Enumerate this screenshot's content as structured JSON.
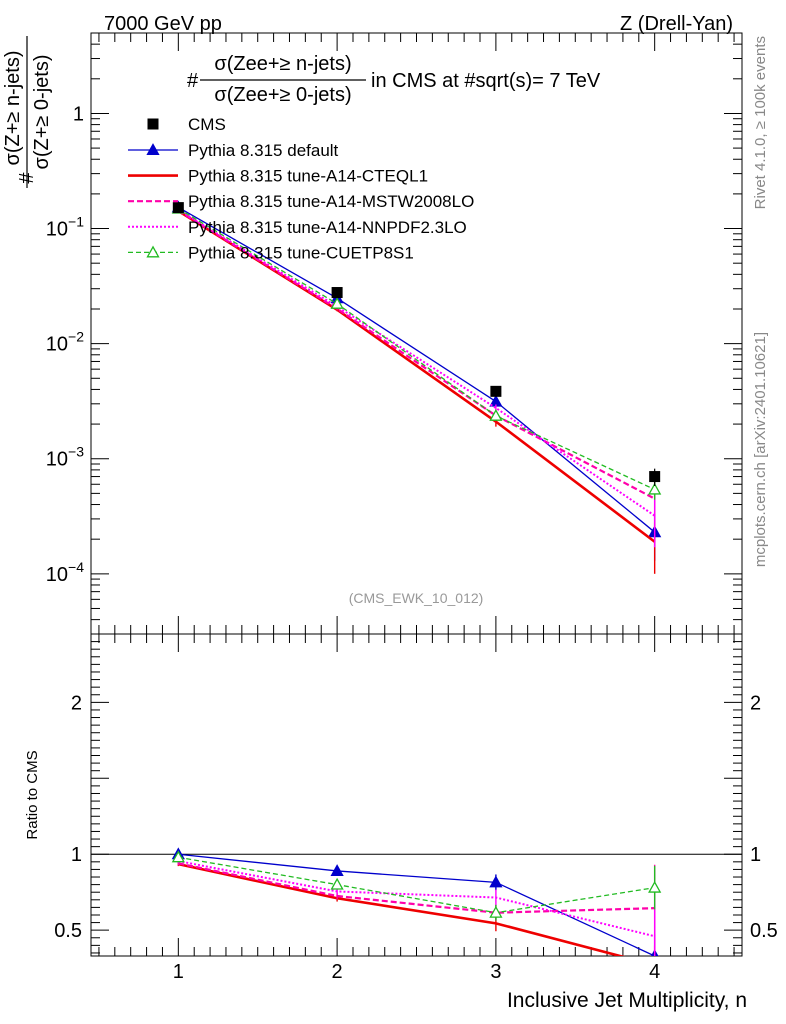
{
  "header": {
    "left": "7000 GeV pp",
    "right": "Z (Drell-Yan)"
  },
  "side_labels": {
    "rivet": "Rivet 4.1.0, ≥ 100k events",
    "mcplots": "mcplots.cern.ch [arXiv:2401.10621]"
  },
  "chart_data": {
    "type": "line",
    "title": {
      "prefix": "#",
      "numerator": "σ(Zee+≥ n-jets)",
      "denominator": "σ(Zee+≥ 0-jets)",
      "suffix": "in CMS at #sqrt(s)= 7 TeV"
    },
    "ylabel": {
      "prefix": "#",
      "numerator": "σ(Z+≥ n-jets)",
      "denominator": "σ(Z+≥ 0-jets)"
    },
    "xlabel": "Inclusive Jet Multiplicity, n",
    "ratio_ylabel": "Ratio to CMS",
    "watermark": "(CMS_EWK_10_012)",
    "x": [
      1,
      2,
      3,
      4
    ],
    "xlim": [
      0.45,
      4.55
    ],
    "ylim": [
      3e-05,
      5
    ],
    "yscale": "log",
    "ratio_ylim": [
      0.33,
      2.45
    ],
    "x_tick_labels": [
      "1",
      "2",
      "3",
      "4"
    ],
    "y_tick_labels": [
      {
        "value": 1,
        "base": "1",
        "exp": ""
      },
      {
        "value": 0.1,
        "base": "10",
        "exp": "−1"
      },
      {
        "value": 0.01,
        "base": "10",
        "exp": "−2"
      },
      {
        "value": 0.001,
        "base": "10",
        "exp": "−3"
      },
      {
        "value": 0.0001,
        "base": "10",
        "exp": "−4"
      }
    ],
    "ratio_tick_labels": [
      {
        "value": 2,
        "label": "2"
      },
      {
        "value": 1,
        "label": "1"
      },
      {
        "value": 0.5,
        "label": "0.5"
      }
    ],
    "data": {
      "name": "CMS",
      "values": [
        0.152,
        0.0278,
        0.00385,
        0.0007
      ],
      "errors": [
        0.003,
        0.0012,
        0.0003,
        0.00012
      ],
      "color": "#000000"
    },
    "series": [
      {
        "name": "Pythia 8.315 default",
        "values": [
          0.153,
          0.0248,
          0.00314,
          0.00023
        ],
        "ratio": [
          1.0,
          0.89,
          0.815,
          0.33
        ],
        "errors": [
          0.002,
          0.0006,
          0.0002,
          0.0001
        ],
        "color": "#0000cc",
        "dash": "",
        "width": 1.3,
        "marker": "triangle-filled"
      },
      {
        "name": "Pythia 8.315 tune-A14-CTEQL1",
        "values": [
          0.142,
          0.0197,
          0.0021,
          0.00019
        ],
        "ratio": [
          0.935,
          0.71,
          0.545,
          0.27
        ],
        "errors": [
          0.002,
          0.0006,
          0.0002,
          9e-05
        ],
        "color": "#ee0000",
        "dash": "",
        "width": 2.6,
        "marker": "none"
      },
      {
        "name": "Pythia 8.315 tune-A14-MSTW2008LO",
        "values": [
          0.143,
          0.0201,
          0.00237,
          0.00045
        ],
        "ratio": [
          0.94,
          0.725,
          0.615,
          0.645
        ],
        "errors": [
          0.002,
          0.0006,
          0.0002,
          0.0002
        ],
        "color": "#ff00aa",
        "dash": "6,3",
        "width": 2.2,
        "marker": "none"
      },
      {
        "name": "Pythia 8.315 tune-A14-NNPDF2.3LO",
        "values": [
          0.145,
          0.021,
          0.00276,
          0.00032
        ],
        "ratio": [
          0.955,
          0.755,
          0.715,
          0.46
        ],
        "errors": [
          0.002,
          0.0006,
          0.0002,
          0.00015
        ],
        "color": "#ff00ff",
        "dash": "2,2",
        "width": 2.0,
        "marker": "none"
      },
      {
        "name": "Pythia 8.315 tune-CUETP8S1",
        "values": [
          0.149,
          0.0222,
          0.00236,
          0.00054
        ],
        "ratio": [
          0.98,
          0.8,
          0.615,
          0.78
        ],
        "errors": [
          0.002,
          0.0006,
          0.0002,
          0.0001
        ],
        "color": "#22bb22",
        "dash": "5,3",
        "width": 1.3,
        "marker": "triangle-open"
      }
    ]
  }
}
